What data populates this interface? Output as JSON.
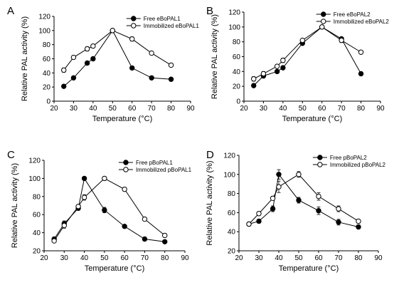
{
  "chart_data": [
    {
      "type": "line",
      "panel": "A",
      "xlabel": "Temperature (°C)",
      "ylabel": "Relative PAL activity (%)",
      "xlim": [
        20,
        90
      ],
      "ylim": [
        0,
        120
      ],
      "xticks": [
        "20",
        "30",
        "40",
        "50",
        "60",
        "70",
        "80",
        "90"
      ],
      "yticks": [
        "0",
        "20",
        "40",
        "60",
        "80",
        "100",
        "120"
      ],
      "legend_position": "top-right",
      "series": [
        {
          "name": "Free eBoPAL1",
          "marker": "filled",
          "x": [
            25,
            30,
            37,
            40,
            50,
            60,
            70,
            80
          ],
          "y": [
            21,
            33,
            54,
            60,
            100,
            47,
            33,
            31
          ],
          "err": [
            1,
            1,
            1,
            1,
            1,
            1.5,
            1,
            1
          ]
        },
        {
          "name": "Immobilized eBoPAL1",
          "marker": "open",
          "x": [
            25,
            30,
            37,
            40,
            50,
            60,
            70,
            80
          ],
          "y": [
            44,
            62,
            74,
            78,
            100,
            88,
            68,
            51
          ],
          "err": [
            3,
            1.5,
            3,
            1,
            2,
            3,
            2,
            2
          ]
        }
      ]
    },
    {
      "type": "line",
      "panel": "B",
      "xlabel": "Temperature (°C)",
      "ylabel": "Relative PAL activity (%)",
      "xlim": [
        20,
        90
      ],
      "ylim": [
        0,
        120
      ],
      "xticks": [
        "20",
        "30",
        "40",
        "50",
        "60",
        "70",
        "80",
        "90"
      ],
      "yticks": [
        "0",
        "20",
        "40",
        "60",
        "80",
        "100",
        "120"
      ],
      "legend_position": "top-right",
      "series": [
        {
          "name": "Free eBoPAL2",
          "marker": "filled",
          "x": [
            25,
            30,
            37,
            40,
            50,
            60,
            70,
            80
          ],
          "y": [
            21,
            34,
            40,
            45,
            78,
            100,
            84,
            37
          ],
          "err": [
            1,
            1,
            1,
            1.5,
            2,
            1,
            2,
            1
          ]
        },
        {
          "name": "Immobilized eBoPAL2",
          "marker": "open",
          "x": [
            25,
            30,
            37,
            40,
            50,
            60,
            70,
            80
          ],
          "y": [
            30,
            37,
            47,
            55,
            82,
            100,
            82,
            66
          ],
          "err": [
            3,
            3,
            2,
            3,
            2,
            2,
            3,
            1
          ]
        }
      ]
    },
    {
      "type": "line",
      "panel": "C",
      "xlabel": "Temperature (°C)",
      "ylabel": "Relative PAL activity (%)",
      "xlim": [
        20,
        90
      ],
      "ylim": [
        20,
        120
      ],
      "xticks": [
        "20",
        "30",
        "40",
        "50",
        "60",
        "70",
        "80",
        "90"
      ],
      "yticks": [
        "20",
        "40",
        "60",
        "80",
        "100",
        "120"
      ],
      "legend_position": "top-right",
      "series": [
        {
          "name": "Free pBoPAL1",
          "marker": "filled",
          "x": [
            25,
            30,
            37,
            40,
            50,
            60,
            70,
            80
          ],
          "y": [
            33,
            50,
            67,
            100,
            65,
            47,
            33,
            30
          ],
          "err": [
            1,
            3,
            2,
            1.5,
            3,
            1,
            1,
            1
          ]
        },
        {
          "name": "Immobilized pBoPAL1",
          "marker": "open",
          "x": [
            25,
            30,
            37,
            40,
            50,
            60,
            70,
            80
          ],
          "y": [
            31,
            48,
            69,
            79,
            100,
            88,
            55,
            37
          ],
          "err": [
            1,
            3,
            2,
            3,
            2,
            2,
            2,
            2
          ]
        }
      ]
    },
    {
      "type": "line",
      "panel": "D",
      "xlabel": "Temperature (°C)",
      "ylabel": "Relative PAL activity (%)",
      "xlim": [
        20,
        90
      ],
      "ylim": [
        20,
        120
      ],
      "xticks": [
        "20",
        "30",
        "40",
        "50",
        "60",
        "70",
        "80",
        "90"
      ],
      "yticks": [
        "20",
        "40",
        "60",
        "80",
        "100",
        "120"
      ],
      "legend_position": "top-right",
      "series": [
        {
          "name": "Free pBoPAL2",
          "marker": "filled",
          "x": [
            25,
            30,
            37,
            40,
            50,
            60,
            70,
            80
          ],
          "y": [
            48,
            51,
            64,
            100,
            73,
            62,
            50,
            45
          ],
          "err": [
            1,
            2,
            3,
            5,
            3,
            4,
            3,
            2
          ]
        },
        {
          "name": "Immobilized pBoPAL2",
          "marker": "open",
          "x": [
            25,
            30,
            37,
            40,
            50,
            60,
            70,
            80
          ],
          "y": [
            48,
            59,
            75,
            87,
            100,
            77,
            64,
            51
          ],
          "err": [
            1,
            2,
            2,
            6,
            3,
            4,
            3,
            2
          ]
        }
      ]
    }
  ]
}
